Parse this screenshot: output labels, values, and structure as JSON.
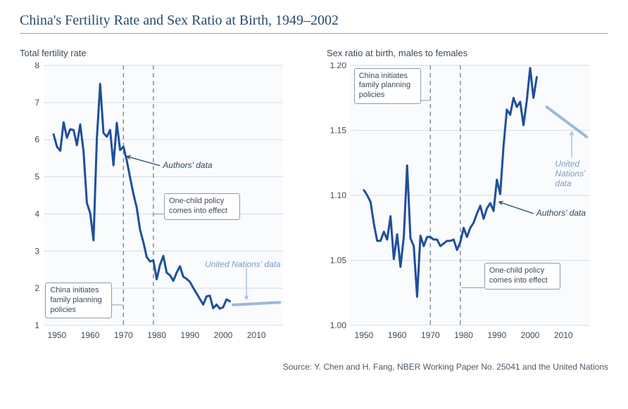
{
  "title": "China's Fertility Rate and Sex Ratio at Birth, 1949–2002",
  "source": "Source: Y. Chen and H. Fang, NBER Working Paper No. 25041 and the United Nations",
  "colors": {
    "title": "#2a4a6b",
    "line_main": "#1f4f9a",
    "line_un": "#9fb7db",
    "grid": "#d6dde4",
    "axis_text": "#3b4a59",
    "panel_bg": "#f9fbfd",
    "vline": "#7a8a99",
    "box_border": "#8a9bac"
  },
  "left_chart": {
    "subtitle": "Total fertility rate",
    "xlim": [
      1946,
      2018
    ],
    "ylim": [
      1,
      8
    ],
    "xticks": [
      1950,
      1960,
      1970,
      1980,
      1990,
      2000,
      2010
    ],
    "yticks": [
      1,
      2,
      3,
      4,
      5,
      6,
      7,
      8
    ],
    "vlines": [
      1970,
      1979
    ],
    "line_width": 3.0,
    "un_line_width": 4.0,
    "series_main": [
      [
        1949,
        6.14
      ],
      [
        1950,
        5.81
      ],
      [
        1951,
        5.7
      ],
      [
        1952,
        6.47
      ],
      [
        1953,
        6.05
      ],
      [
        1954,
        6.28
      ],
      [
        1955,
        6.26
      ],
      [
        1956,
        5.85
      ],
      [
        1957,
        6.41
      ],
      [
        1958,
        5.68
      ],
      [
        1959,
        4.3
      ],
      [
        1960,
        4.02
      ],
      [
        1961,
        3.29
      ],
      [
        1962,
        6.02
      ],
      [
        1963,
        7.5
      ],
      [
        1964,
        6.18
      ],
      [
        1965,
        6.08
      ],
      [
        1966,
        6.26
      ],
      [
        1967,
        5.31
      ],
      [
        1968,
        6.45
      ],
      [
        1969,
        5.72
      ],
      [
        1970,
        5.81
      ],
      [
        1971,
        5.44
      ],
      [
        1972,
        4.98
      ],
      [
        1973,
        4.54
      ],
      [
        1974,
        4.17
      ],
      [
        1975,
        3.57
      ],
      [
        1976,
        3.24
      ],
      [
        1977,
        2.84
      ],
      [
        1978,
        2.72
      ],
      [
        1979,
        2.75
      ],
      [
        1980,
        2.24
      ],
      [
        1981,
        2.63
      ],
      [
        1982,
        2.87
      ],
      [
        1983,
        2.42
      ],
      [
        1984,
        2.35
      ],
      [
        1985,
        2.2
      ],
      [
        1986,
        2.42
      ],
      [
        1987,
        2.59
      ],
      [
        1988,
        2.31
      ],
      [
        1989,
        2.25
      ],
      [
        1990,
        2.17
      ],
      [
        1991,
        2.01
      ],
      [
        1992,
        1.86
      ],
      [
        1993,
        1.71
      ],
      [
        1994,
        1.56
      ],
      [
        1995,
        1.78
      ],
      [
        1996,
        1.8
      ],
      [
        1997,
        1.46
      ],
      [
        1998,
        1.56
      ],
      [
        1999,
        1.45
      ],
      [
        2000,
        1.49
      ],
      [
        2001,
        1.7
      ],
      [
        2002,
        1.65
      ]
    ],
    "series_un": [
      [
        2003,
        1.55
      ],
      [
        2017,
        1.62
      ]
    ],
    "annotations": {
      "authors_data": "Authors' data",
      "authors_arrow": {
        "from": [
          1981,
          5.3
        ],
        "to": [
          1971,
          5.55
        ]
      },
      "un_data": "United Nations' data",
      "un_arrow": {
        "from": [
          2007,
          2.55
        ],
        "to": [
          2007,
          1.7
        ]
      },
      "box_cfp": "China initiates family planning policies",
      "box_cfp_leader": {
        "from": [
          1964.5,
          1.55
        ],
        "to": [
          1969.8,
          1.55
        ]
      },
      "box_ocp": "One-child policy comes into effect",
      "box_ocp_leader": {
        "from": [
          1982,
          4.0
        ],
        "to": [
          1979.2,
          4.0
        ]
      }
    }
  },
  "right_chart": {
    "subtitle": "Sex ratio at birth, males to females",
    "xlim": [
      1946,
      2018
    ],
    "ylim": [
      1.0,
      1.2
    ],
    "xticks": [
      1950,
      1960,
      1970,
      1980,
      1990,
      2000,
      2010
    ],
    "yticks": [
      1.0,
      1.05,
      1.1,
      1.15,
      1.2
    ],
    "ytick_labels": [
      "1.00",
      "1.05",
      "1.10",
      "1.15",
      "1.20"
    ],
    "vlines": [
      1970,
      1979
    ],
    "line_width": 3.0,
    "un_line_width": 4.0,
    "series_main": [
      [
        1950,
        1.104
      ],
      [
        1951,
        1.1
      ],
      [
        1952,
        1.095
      ],
      [
        1953,
        1.078
      ],
      [
        1954,
        1.065
      ],
      [
        1955,
        1.065
      ],
      [
        1956,
        1.072
      ],
      [
        1957,
        1.066
      ],
      [
        1958,
        1.084
      ],
      [
        1959,
        1.051
      ],
      [
        1960,
        1.07
      ],
      [
        1961,
        1.045
      ],
      [
        1962,
        1.068
      ],
      [
        1963,
        1.123
      ],
      [
        1964,
        1.067
      ],
      [
        1965,
        1.061
      ],
      [
        1966,
        1.022
      ],
      [
        1967,
        1.069
      ],
      [
        1968,
        1.061
      ],
      [
        1969,
        1.068
      ],
      [
        1970,
        1.068
      ],
      [
        1971,
        1.066
      ],
      [
        1972,
        1.066
      ],
      [
        1973,
        1.061
      ],
      [
        1974,
        1.063
      ],
      [
        1975,
        1.065
      ],
      [
        1976,
        1.065
      ],
      [
        1977,
        1.066
      ],
      [
        1978,
        1.058
      ],
      [
        1979,
        1.064
      ],
      [
        1980,
        1.075
      ],
      [
        1981,
        1.068
      ],
      [
        1982,
        1.075
      ],
      [
        1983,
        1.079
      ],
      [
        1984,
        1.086
      ],
      [
        1985,
        1.092
      ],
      [
        1986,
        1.082
      ],
      [
        1987,
        1.09
      ],
      [
        1988,
        1.094
      ],
      [
        1989,
        1.088
      ],
      [
        1990,
        1.112
      ],
      [
        1991,
        1.101
      ],
      [
        1992,
        1.138
      ],
      [
        1993,
        1.166
      ],
      [
        1994,
        1.162
      ],
      [
        1995,
        1.175
      ],
      [
        1996,
        1.168
      ],
      [
        1997,
        1.172
      ],
      [
        1998,
        1.154
      ],
      [
        1999,
        1.173
      ],
      [
        2000,
        1.198
      ],
      [
        2001,
        1.175
      ],
      [
        2002,
        1.191
      ]
    ],
    "series_un": [
      [
        2005,
        1.168
      ],
      [
        2017,
        1.145
      ]
    ],
    "annotations": {
      "authors_data": "Authors' data",
      "authors_arrow": {
        "from": [
          2001,
          1.086
        ],
        "to": [
          1990.6,
          1.095
        ]
      },
      "un_data": "United Nations' data",
      "un_arrow": {
        "from": [
          2012.5,
          1.129
        ],
        "to": [
          2012.5,
          1.149
        ]
      },
      "box_cfp": "China initiates family planning policies",
      "box_cfp_leader": {
        "from": [
          1962.5,
          1.173
        ],
        "to": [
          1969.8,
          1.173
        ]
      },
      "box_ocp": "One-child policy comes into effect",
      "box_ocp_leader": {
        "from": [
          1986,
          1.029
        ],
        "to": [
          1979.2,
          1.029
        ]
      }
    }
  }
}
